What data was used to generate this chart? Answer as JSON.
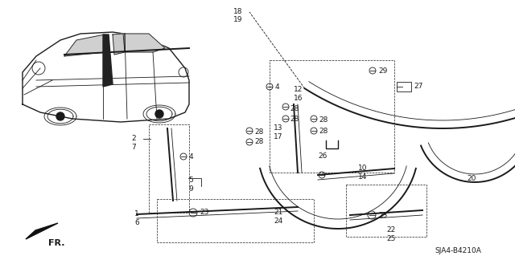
{
  "bg_color": "#ffffff",
  "line_color": "#1a1a1a",
  "diagram_code": "SJA4-B4210A",
  "fig_width": 6.4,
  "fig_height": 3.19,
  "dpi": 100
}
